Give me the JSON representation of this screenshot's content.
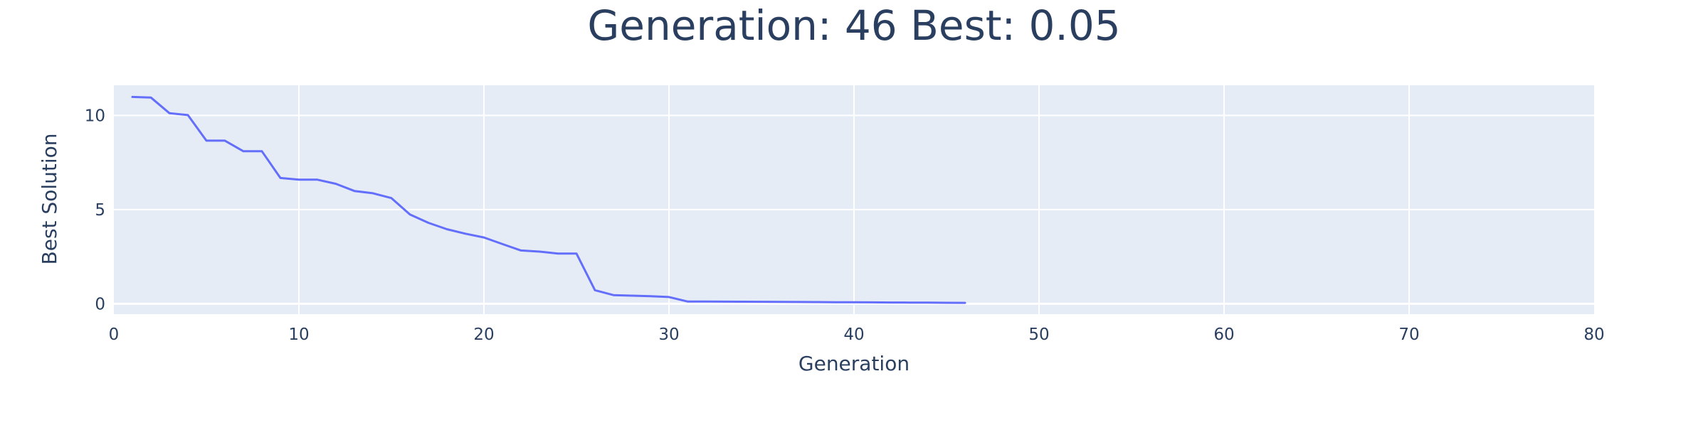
{
  "chart_data": {
    "type": "line",
    "title": "Generation: 46 Best: 0.05",
    "xlabel": "Generation",
    "ylabel": "Best Solution",
    "xlim": [
      0,
      80
    ],
    "ylim": [
      -0.55,
      11.6
    ],
    "x_ticks": [
      0,
      10,
      20,
      30,
      40,
      50,
      60,
      70,
      80
    ],
    "y_ticks": [
      0,
      5,
      10
    ],
    "grid": true,
    "legend": "none",
    "colors": {
      "plot_background": "#e5ecf6",
      "grid": "#ffffff",
      "text": "#2a3f5f",
      "line": "#636efa"
    },
    "series": [
      {
        "x": [
          1,
          2,
          3,
          4,
          5,
          6,
          7,
          8,
          9,
          10,
          11,
          12,
          13,
          14,
          15,
          16,
          17,
          18,
          19,
          20,
          21,
          22,
          23,
          24,
          25,
          26,
          27,
          28,
          29,
          30,
          31,
          32,
          33,
          34,
          35,
          36,
          37,
          38,
          39,
          40,
          41,
          42,
          43,
          44,
          45,
          46
        ],
        "values": [
          10.98,
          10.95,
          10.12,
          10.02,
          8.66,
          8.66,
          8.1,
          8.1,
          6.68,
          6.59,
          6.59,
          6.37,
          5.99,
          5.87,
          5.61,
          4.74,
          4.3,
          3.96,
          3.72,
          3.52,
          3.17,
          2.83,
          2.77,
          2.67,
          2.67,
          0.72,
          0.46,
          0.43,
          0.4,
          0.36,
          0.12,
          0.12,
          0.115,
          0.11,
          0.105,
          0.1,
          0.095,
          0.09,
          0.085,
          0.08,
          0.075,
          0.07,
          0.065,
          0.06,
          0.055,
          0.05
        ]
      }
    ]
  }
}
